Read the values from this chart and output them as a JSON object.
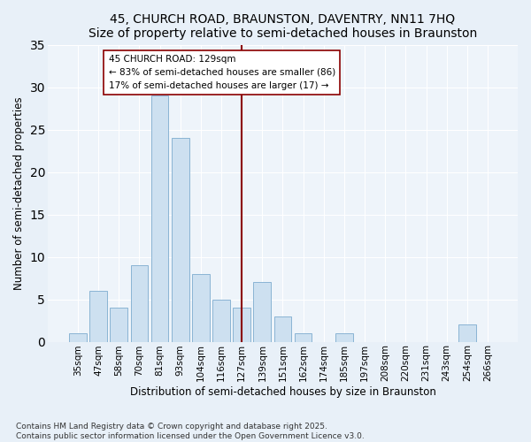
{
  "title1": "45, CHURCH ROAD, BRAUNSTON, DAVENTRY, NN11 7HQ",
  "title2": "Size of property relative to semi-detached houses in Braunston",
  "xlabel": "Distribution of semi-detached houses by size in Braunston",
  "ylabel": "Number of semi-detached properties",
  "categories": [
    "35sqm",
    "47sqm",
    "58sqm",
    "70sqm",
    "81sqm",
    "93sqm",
    "104sqm",
    "116sqm",
    "127sqm",
    "139sqm",
    "151sqm",
    "162sqm",
    "174sqm",
    "185sqm",
    "197sqm",
    "208sqm",
    "220sqm",
    "231sqm",
    "243sqm",
    "254sqm",
    "266sqm"
  ],
  "values": [
    1,
    6,
    4,
    9,
    29,
    24,
    8,
    5,
    4,
    7,
    3,
    1,
    0,
    1,
    0,
    0,
    0,
    0,
    0,
    2,
    0
  ],
  "bar_color": "#cde0f0",
  "bar_edge_color": "#8ab4d4",
  "marker_index": 8,
  "marker_color": "#8b0000",
  "annotation_text": "45 CHURCH ROAD: 129sqm\n← 83% of semi-detached houses are smaller (86)\n17% of semi-detached houses are larger (17) →",
  "annotation_box_color": "white",
  "annotation_box_edge": "#8b0000",
  "ylim": [
    0,
    35
  ],
  "yticks": [
    0,
    5,
    10,
    15,
    20,
    25,
    30,
    35
  ],
  "footer": "Contains HM Land Registry data © Crown copyright and database right 2025.\nContains public sector information licensed under the Open Government Licence v3.0.",
  "bg_color": "#e8f0f8",
  "plot_bg_color": "#eef4fa",
  "grid_color": "#ffffff",
  "title_fontsize": 10,
  "tick_fontsize": 7.5,
  "label_fontsize": 8.5,
  "annotation_fontsize": 7.5,
  "footer_fontsize": 6.5
}
